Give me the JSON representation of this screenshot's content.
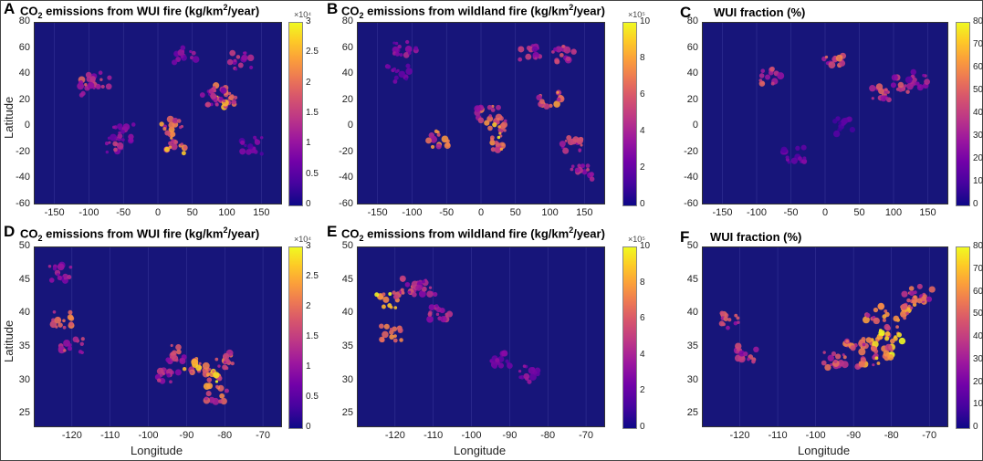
{
  "chart_data": [
    {
      "id": "A",
      "type": "heatmap",
      "title_parts": [
        "CO",
        "2",
        " emissions from WUI fire (kg/km",
        "2",
        "/year)"
      ],
      "xticks": [
        "-150",
        "-100",
        "-50",
        "0",
        "50",
        "100",
        "150"
      ],
      "xtick_values": [
        -150,
        -100,
        -50,
        0,
        50,
        100,
        150
      ],
      "yticks": [
        "80",
        "60",
        "40",
        "20",
        "0",
        "-20",
        "-40",
        "-60"
      ],
      "ytick_values": [
        80,
        60,
        40,
        20,
        0,
        -20,
        -40,
        -60
      ],
      "xlim": [
        -180,
        180
      ],
      "ylim": [
        -60,
        80
      ],
      "xlabel": "",
      "ylabel": "Latitude",
      "colorbar": {
        "ticks": [
          "3",
          "2.5",
          "2",
          "1.5",
          "1",
          "0.5",
          "0"
        ],
        "tick_values": [
          3,
          2.5,
          2,
          1.5,
          1,
          0.5,
          0
        ],
        "range": [
          0,
          3
        ],
        "multiplier": "×10⁴"
      },
      "hotspots": [
        [
          -100,
          30,
          0.6
        ],
        [
          -85,
          35,
          0.5
        ],
        [
          -60,
          -15,
          0.5
        ],
        [
          20,
          0,
          0.8
        ],
        [
          25,
          -15,
          0.9
        ],
        [
          100,
          20,
          0.9
        ],
        [
          95,
          25,
          0.7
        ],
        [
          40,
          55,
          0.4
        ],
        [
          120,
          50,
          0.5
        ],
        [
          -50,
          -5,
          0.4
        ],
        [
          135,
          -15,
          0.3
        ],
        [
          80,
          22,
          0.5
        ]
      ]
    },
    {
      "id": "B",
      "type": "heatmap",
      "title_parts": [
        "CO",
        "2",
        " emissions from wildland fire (kg/km",
        "2",
        "/year)"
      ],
      "xticks": [
        "-150",
        "-100",
        "-50",
        "0",
        "50",
        "100",
        "150"
      ],
      "xtick_values": [
        -150,
        -100,
        -50,
        0,
        50,
        100,
        150
      ],
      "yticks": [
        "80",
        "60",
        "40",
        "20",
        "0",
        "-20",
        "-40",
        "-60"
      ],
      "ytick_values": [
        80,
        60,
        40,
        20,
        0,
        -20,
        -40,
        -60
      ],
      "xlim": [
        -180,
        180
      ],
      "ylim": [
        -60,
        80
      ],
      "xlabel": "",
      "ylabel": "",
      "colorbar": {
        "ticks": [
          "10",
          "8",
          "6",
          "4",
          "2",
          "0"
        ],
        "tick_values": [
          10,
          8,
          6,
          4,
          2,
          0
        ],
        "range": [
          0,
          10
        ],
        "multiplier": "×10⁵"
      },
      "hotspots": [
        [
          20,
          0,
          0.9
        ],
        [
          25,
          -12,
          1.0
        ],
        [
          -60,
          -10,
          0.8
        ],
        [
          100,
          20,
          0.8
        ],
        [
          130,
          -15,
          0.6
        ],
        [
          120,
          55,
          0.6
        ],
        [
          70,
          55,
          0.5
        ],
        [
          -110,
          60,
          0.4
        ],
        [
          10,
          10,
          0.7
        ],
        [
          -120,
          40,
          0.3
        ],
        [
          145,
          -35,
          0.5
        ]
      ]
    },
    {
      "id": "C",
      "type": "heatmap",
      "title_parts": [
        "WUI fraction (%)"
      ],
      "xticks": [
        "-150",
        "-100",
        "-50",
        "0",
        "50",
        "100",
        "150"
      ],
      "xtick_values": [
        -150,
        -100,
        -50,
        0,
        50,
        100,
        150
      ],
      "yticks": [
        "80",
        "70",
        "60",
        "50",
        "40",
        "30",
        "20",
        "10",
        "0"
      ],
      "ytick_values": [],
      "cbar_only": true,
      "yticks_map": [
        "80",
        "60",
        "40",
        "20",
        "0",
        "-20",
        "-40",
        "-60"
      ],
      "ytick_map_values": [
        80,
        60,
        40,
        20,
        0,
        -20,
        -40,
        -60
      ],
      "xlim": [
        -180,
        180
      ],
      "ylim": [
        -60,
        80
      ],
      "xlabel": "",
      "ylabel": "",
      "colorbar": {
        "ticks": [
          "80",
          "70",
          "60",
          "50",
          "40",
          "30",
          "20",
          "10",
          "0"
        ],
        "tick_values": [
          80,
          70,
          60,
          50,
          40,
          30,
          20,
          10,
          0
        ],
        "range": [
          0,
          80
        ],
        "multiplier": ""
      },
      "hotspots": [
        [
          -80,
          38,
          0.6
        ],
        [
          10,
          48,
          0.7
        ],
        [
          80,
          25,
          0.6
        ],
        [
          115,
          32,
          0.6
        ],
        [
          135,
          36,
          0.4
        ],
        [
          -45,
          -22,
          0.3
        ],
        [
          30,
          0,
          0.2
        ]
      ]
    },
    {
      "id": "D",
      "type": "heatmap",
      "title_parts": [
        "CO",
        "2",
        " emissions from WUI fire (kg/km",
        "2",
        "/year)"
      ],
      "xticks": [
        "-120",
        "-110",
        "-100",
        "-90",
        "-80",
        "-70"
      ],
      "xtick_values": [
        -120,
        -110,
        -100,
        -90,
        -80,
        -70
      ],
      "yticks": [
        "50",
        "45",
        "40",
        "35",
        "30",
        "25"
      ],
      "ytick_values": [
        50,
        45,
        40,
        35,
        30,
        25
      ],
      "xlim": [
        -130,
        -65
      ],
      "ylim": [
        23,
        50
      ],
      "xlabel": "Longitude",
      "ylabel": "Latitude",
      "colorbar": {
        "ticks": [
          "3",
          "2.5",
          "2",
          "1.5",
          "1",
          "0.5",
          "0"
        ],
        "tick_values": [
          3,
          2.5,
          2,
          1.5,
          1,
          0.5,
          0
        ],
        "range": [
          0,
          3
        ],
        "multiplier": "×10⁴"
      },
      "hotspots": [
        [
          -122,
          39,
          0.8
        ],
        [
          -120,
          35,
          0.6
        ],
        [
          -88,
          32,
          0.9
        ],
        [
          -84,
          31,
          1.0
        ],
        [
          -82,
          28,
          0.8
        ],
        [
          -92,
          34,
          0.6
        ],
        [
          -95,
          31,
          0.5
        ],
        [
          -80,
          33,
          0.7
        ],
        [
          -123,
          46,
          0.4
        ]
      ]
    },
    {
      "id": "E",
      "type": "heatmap",
      "title_parts": [
        "CO",
        "2",
        " emissions from wildland fire (kg/km",
        "2",
        "/year)"
      ],
      "xticks": [
        "-120",
        "-110",
        "-100",
        "-90",
        "-80",
        "-70"
      ],
      "xtick_values": [
        -120,
        -110,
        -100,
        -90,
        -80,
        -70
      ],
      "yticks": [
        "50",
        "45",
        "40",
        "35",
        "30",
        "25"
      ],
      "ytick_values": [
        50,
        45,
        40,
        35,
        30,
        25
      ],
      "xlim": [
        -130,
        -65
      ],
      "ylim": [
        23,
        50
      ],
      "xlabel": "Longitude",
      "ylabel": "",
      "colorbar": {
        "ticks": [
          "10",
          "8",
          "6",
          "4",
          "2",
          "0"
        ],
        "tick_values": [
          10,
          8,
          6,
          4,
          2,
          0
        ],
        "range": [
          0,
          10
        ],
        "multiplier": "×10⁵"
      },
      "hotspots": [
        [
          -122,
          42,
          1.0
        ],
        [
          -121,
          37,
          0.8
        ],
        [
          -116,
          44,
          0.6
        ],
        [
          -112,
          44,
          0.5
        ],
        [
          -108,
          40,
          0.5
        ],
        [
          -85,
          31,
          0.4
        ],
        [
          -92,
          33,
          0.3
        ]
      ]
    },
    {
      "id": "F",
      "type": "heatmap",
      "title_parts": [
        "WUI fraction (%)"
      ],
      "xticks": [
        "-120",
        "-110",
        "-100",
        "-90",
        "-80",
        "-70"
      ],
      "xtick_values": [
        -120,
        -110,
        -100,
        -90,
        -80,
        -70
      ],
      "yticks": [
        "50",
        "45",
        "40",
        "35",
        "30",
        "25"
      ],
      "ytick_values": [
        50,
        45,
        40,
        35,
        30,
        25
      ],
      "xlim": [
        -130,
        -65
      ],
      "ylim": [
        23,
        50
      ],
      "xlabel": "Longitude",
      "ylabel": "",
      "colorbar": {
        "ticks": [
          "80",
          "70",
          "60",
          "50",
          "40",
          "30",
          "20",
          "10",
          "0"
        ],
        "tick_values": [
          80,
          70,
          60,
          50,
          40,
          30,
          20,
          10,
          0
        ],
        "range": [
          0,
          80
        ],
        "multiplier": ""
      },
      "hotspots": [
        [
          -85,
          36,
          1.0
        ],
        [
          -80,
          37,
          1.0
        ],
        [
          -77,
          40,
          0.9
        ],
        [
          -74,
          42,
          0.8
        ],
        [
          -90,
          35,
          0.8
        ],
        [
          -95,
          33,
          0.7
        ],
        [
          -86,
          33,
          0.9
        ],
        [
          -82,
          34,
          1.0
        ],
        [
          -122,
          39,
          0.6
        ],
        [
          -118,
          34,
          0.6
        ],
        [
          -84,
          40,
          0.8
        ],
        [
          -72,
          43,
          0.7
        ]
      ]
    }
  ],
  "colors": {
    "background": "#17157a",
    "low": "#0d0887",
    "high": "#f0f921",
    "border": "#ffffff"
  }
}
